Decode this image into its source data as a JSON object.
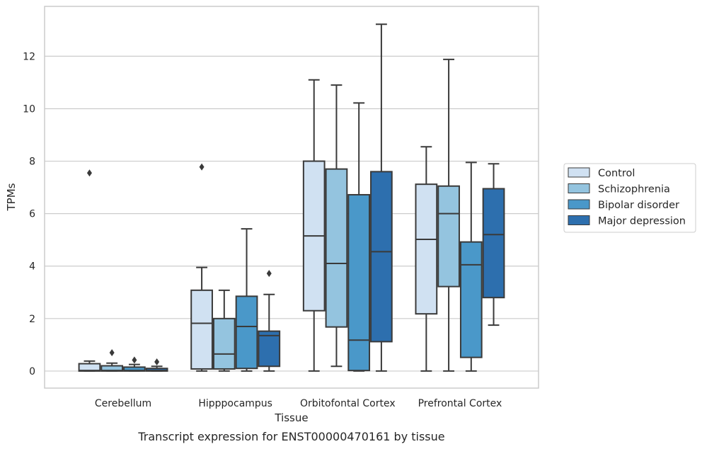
{
  "caption": "Transcript expression for ENST00000470161 by tissue",
  "chart_data": {
    "type": "box",
    "xlabel": "Tissue",
    "ylabel": "TPMs",
    "ylim": [
      -0.65,
      13.9
    ],
    "yticks": [
      0,
      2,
      4,
      6,
      8,
      10,
      12
    ],
    "grid": true,
    "legend_position": "right",
    "categories": [
      "Cerebellum",
      "Hipppocampus",
      "Orbitofontal Cortex",
      "Prefrontal Cortex"
    ],
    "series": [
      {
        "name": "Control",
        "color": "#d0e1f2",
        "boxes": [
          {
            "whislo": 0.0,
            "q1": 0.0,
            "med": 0.02,
            "q3": 0.28,
            "whishi": 0.38,
            "fliers": [
              7.55
            ]
          },
          {
            "whislo": 0.0,
            "q1": 0.08,
            "med": 1.82,
            "q3": 3.08,
            "whishi": 3.95,
            "fliers": [
              7.78
            ]
          },
          {
            "whislo": 0.0,
            "q1": 2.3,
            "med": 5.15,
            "q3": 8.0,
            "whishi": 11.1,
            "fliers": []
          },
          {
            "whislo": 0.0,
            "q1": 2.18,
            "med": 5.02,
            "q3": 7.12,
            "whishi": 8.55,
            "fliers": []
          }
        ]
      },
      {
        "name": "Schizophrenia",
        "color": "#94c4df",
        "boxes": [
          {
            "whislo": 0.0,
            "q1": 0.0,
            "med": 0.02,
            "q3": 0.2,
            "whishi": 0.3,
            "fliers": [
              0.7
            ]
          },
          {
            "whislo": 0.0,
            "q1": 0.08,
            "med": 0.65,
            "q3": 2.0,
            "whishi": 3.08,
            "fliers": []
          },
          {
            "whislo": 0.18,
            "q1": 1.68,
            "med": 4.1,
            "q3": 7.7,
            "whishi": 10.9,
            "fliers": []
          },
          {
            "whislo": 0.0,
            "q1": 3.22,
            "med": 6.0,
            "q3": 7.05,
            "whishi": 11.88,
            "fliers": []
          }
        ]
      },
      {
        "name": "Bipolar disorder",
        "color": "#4a98c9",
        "boxes": [
          {
            "whislo": 0.0,
            "q1": 0.0,
            "med": 0.02,
            "q3": 0.15,
            "whishi": 0.25,
            "fliers": [
              0.42
            ]
          },
          {
            "whislo": 0.0,
            "q1": 0.1,
            "med": 1.7,
            "q3": 2.85,
            "whishi": 5.42,
            "fliers": []
          },
          {
            "whislo": 0.0,
            "q1": 0.02,
            "med": 1.18,
            "q3": 6.72,
            "whishi": 10.22,
            "fliers": []
          },
          {
            "whislo": 0.0,
            "q1": 0.52,
            "med": 4.05,
            "q3": 4.92,
            "whishi": 7.95,
            "fliers": []
          }
        ]
      },
      {
        "name": "Major depression",
        "color": "#2d6fae",
        "boxes": [
          {
            "whislo": 0.0,
            "q1": 0.0,
            "med": 0.02,
            "q3": 0.1,
            "whishi": 0.18,
            "fliers": [
              0.35
            ]
          },
          {
            "whislo": 0.0,
            "q1": 0.18,
            "med": 1.35,
            "q3": 1.52,
            "whishi": 2.92,
            "fliers": [
              3.72
            ]
          },
          {
            "whislo": 0.0,
            "q1": 1.12,
            "med": 4.55,
            "q3": 7.6,
            "whishi": 13.22,
            "fliers": []
          },
          {
            "whislo": 1.75,
            "q1": 2.8,
            "med": 5.2,
            "q3": 6.95,
            "whishi": 7.9,
            "fliers": []
          }
        ]
      }
    ]
  }
}
